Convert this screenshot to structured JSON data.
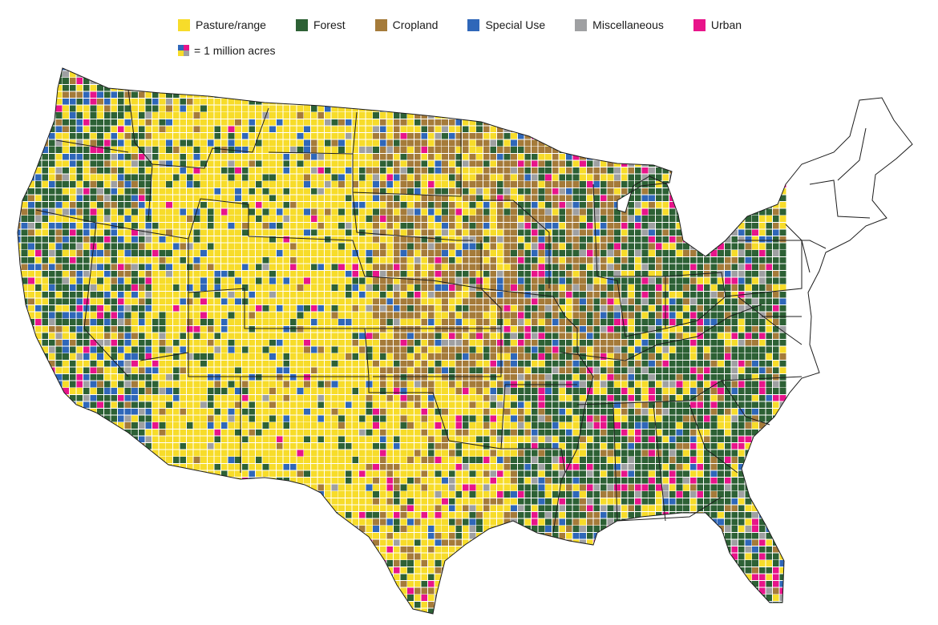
{
  "legend": {
    "items": [
      {
        "key": "pasture",
        "label": "Pasture/range",
        "color": "#f7dc2a"
      },
      {
        "key": "forest",
        "label": "Forest",
        "color": "#2d6135"
      },
      {
        "key": "cropland",
        "label": "Cropland",
        "color": "#a57b3a"
      },
      {
        "key": "special",
        "label": "Special Use",
        "color": "#2f67b9"
      },
      {
        "key": "misc",
        "label": "Miscellaneous",
        "color": "#9fa0a2"
      },
      {
        "key": "urban",
        "label": "Urban",
        "color": "#e8148a"
      }
    ],
    "unit_label": "= 1 million acres"
  },
  "map": {
    "grid_line_color": "#ffffff",
    "state_border_color": "#1c1c1c"
  }
}
